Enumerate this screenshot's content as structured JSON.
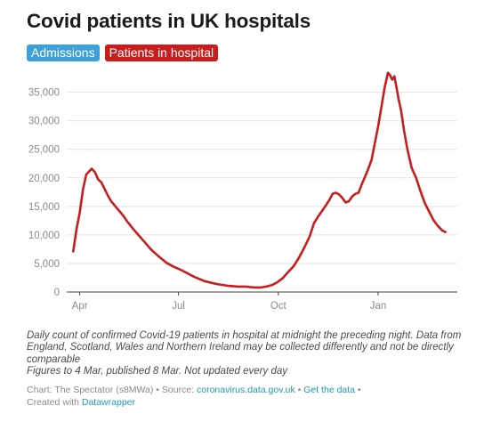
{
  "title": "Covid patients in UK hospitals",
  "toggles": [
    {
      "label": "Admissions",
      "color": "#3da0d8",
      "active": false
    },
    {
      "label": "Patients in hospital",
      "color": "#c71e1d",
      "active": true
    }
  ],
  "chart_data": {
    "type": "line",
    "title": "Covid patients in UK hospitals",
    "xlabel": "",
    "ylabel": "",
    "ylim": [
      0,
      39000
    ],
    "yticks": [
      0,
      5000,
      10000,
      15000,
      20000,
      25000,
      30000,
      35000
    ],
    "ytick_labels": [
      "0",
      "5,000",
      "10,000",
      "15,000",
      "20,000",
      "25,000",
      "30,000",
      "35,000"
    ],
    "xticks": [
      "2020-04-01",
      "2020-07-01",
      "2020-10-01",
      "2021-01-01"
    ],
    "xtick_labels": [
      "Apr",
      "Jul",
      "Oct",
      "Jan"
    ],
    "xlim": [
      "2020-03-20",
      "2021-03-15"
    ],
    "grid": "horizontal",
    "line_color": "#c71e1d",
    "series": [
      {
        "name": "Patients in hospital",
        "x": [
          "2020-03-26",
          "2020-03-29",
          "2020-04-01",
          "2020-04-04",
          "2020-04-07",
          "2020-04-10",
          "2020-04-12",
          "2020-04-15",
          "2020-04-18",
          "2020-04-21",
          "2020-04-24",
          "2020-04-27",
          "2020-04-30",
          "2020-05-03",
          "2020-05-07",
          "2020-05-11",
          "2020-05-15",
          "2020-05-20",
          "2020-05-25",
          "2020-05-31",
          "2020-06-06",
          "2020-06-13",
          "2020-06-20",
          "2020-06-27",
          "2020-07-04",
          "2020-07-15",
          "2020-07-25",
          "2020-08-05",
          "2020-08-15",
          "2020-08-25",
          "2020-09-01",
          "2020-09-06",
          "2020-09-10",
          "2020-09-15",
          "2020-09-20",
          "2020-09-25",
          "2020-09-30",
          "2020-10-05",
          "2020-10-10",
          "2020-10-15",
          "2020-10-20",
          "2020-10-25",
          "2020-10-30",
          "2020-11-03",
          "2020-11-07",
          "2020-11-11",
          "2020-11-14",
          "2020-11-17",
          "2020-11-20",
          "2020-11-23",
          "2020-11-26",
          "2020-11-29",
          "2020-12-02",
          "2020-12-05",
          "2020-12-08",
          "2020-12-11",
          "2020-12-14",
          "2020-12-17",
          "2020-12-20",
          "2020-12-23",
          "2020-12-26",
          "2020-12-29",
          "2021-01-01",
          "2021-01-04",
          "2021-01-07",
          "2021-01-10",
          "2021-01-12",
          "2021-01-14",
          "2021-01-16",
          "2021-01-18",
          "2021-01-20",
          "2021-01-22",
          "2021-01-25",
          "2021-01-28",
          "2021-02-01",
          "2021-02-05",
          "2021-02-09",
          "2021-02-13",
          "2021-02-17",
          "2021-02-21",
          "2021-02-25",
          "2021-03-01",
          "2021-03-04"
        ],
        "values": [
          7100,
          11000,
          13900,
          18000,
          20600,
          21200,
          21600,
          21000,
          19700,
          19200,
          18000,
          16900,
          15900,
          15200,
          14300,
          13400,
          12300,
          11100,
          10000,
          8700,
          7400,
          6200,
          5100,
          4400,
          3800,
          2700,
          1900,
          1400,
          1100,
          950,
          950,
          850,
          800,
          800,
          950,
          1200,
          1700,
          2400,
          3500,
          4500,
          6000,
          7800,
          9800,
          12100,
          13300,
          14400,
          15200,
          16100,
          17200,
          17400,
          17100,
          16500,
          15700,
          15900,
          16700,
          17200,
          17400,
          18900,
          20200,
          21600,
          23200,
          26100,
          29000,
          32300,
          35800,
          38400,
          38000,
          37200,
          37800,
          35800,
          33700,
          32000,
          28200,
          25000,
          21700,
          20000,
          17700,
          15600,
          14100,
          12600,
          11600,
          10800,
          10500
        ]
      }
    ]
  },
  "notes": {
    "description": "Daily count of confirmed Covid-19 patients in hospital at midnight the preceding night. Data from England, Scotland, Wales and Northern Ireland may be collected differently and not be directly comparable",
    "figures_note": "Figures to 4 Mar, published 8 Mar. Not updated every day"
  },
  "footer": {
    "credit": "Chart: The Spectator (s8MWa) • Source: ",
    "source_link": "coronavirus.data.gov.uk",
    "separator": " • ",
    "data_link": "Get the data",
    "separator2": " •",
    "created_with": "Created with ",
    "datawrapper_link": "Datawrapper"
  }
}
